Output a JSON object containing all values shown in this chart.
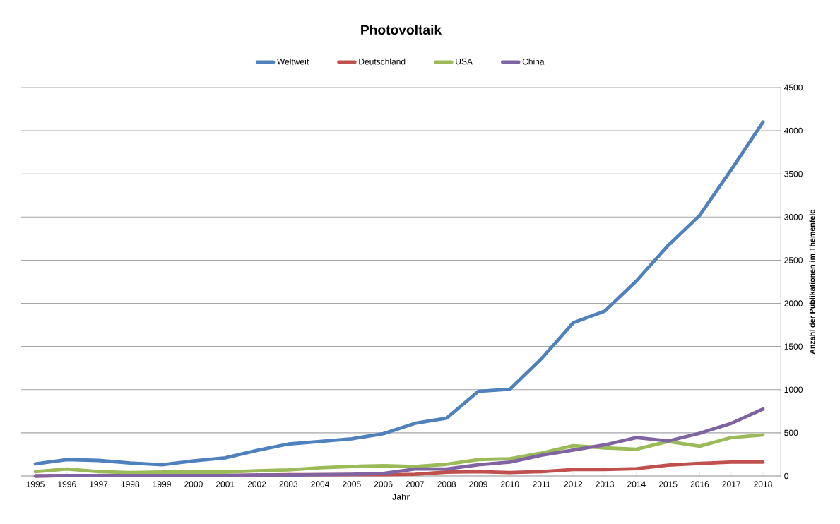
{
  "chart_data": {
    "type": "line",
    "title": "Photovoltaik",
    "xlabel": "Jahr",
    "ylabel": "Anzahl der Publikationen im Themenfeld",
    "categories": [
      "1995",
      "1996",
      "1997",
      "1998",
      "1999",
      "2000",
      "2001",
      "2002",
      "2003",
      "2004",
      "2005",
      "2006",
      "2007",
      "2008",
      "2009",
      "2010",
      "2011",
      "2012",
      "2013",
      "2014",
      "2015",
      "2016",
      "2017",
      "2018"
    ],
    "series": [
      {
        "name": "Weltweit",
        "color": "#4f81bd",
        "values": [
          140,
          190,
          180,
          150,
          130,
          175,
          210,
          295,
          370,
          400,
          430,
          490,
          610,
          670,
          980,
          1005,
          1360,
          1775,
          1910,
          2260,
          2670,
          3020,
          3550,
          4100
        ]
      },
      {
        "name": "Deutschland",
        "color": "#c0504d",
        "values": [
          0,
          5,
          5,
          5,
          5,
          5,
          5,
          10,
          15,
          15,
          15,
          15,
          20,
          45,
          50,
          40,
          50,
          75,
          75,
          85,
          125,
          145,
          160,
          160
        ]
      },
      {
        "name": "USA",
        "color": "#9bbb59",
        "values": [
          50,
          80,
          50,
          40,
          45,
          45,
          45,
          60,
          70,
          95,
          110,
          120,
          110,
          135,
          190,
          200,
          265,
          350,
          325,
          310,
          400,
          345,
          445,
          475
        ]
      },
      {
        "name": "China",
        "color": "#8064a2",
        "values": [
          0,
          5,
          5,
          5,
          5,
          5,
          5,
          10,
          10,
          15,
          20,
          30,
          80,
          80,
          130,
          160,
          240,
          300,
          360,
          445,
          405,
          495,
          610,
          775
        ]
      }
    ],
    "ylim": [
      0,
      4500
    ],
    "yticks": [
      0,
      500,
      1000,
      1500,
      2000,
      2500,
      3000,
      3500,
      4000,
      4500
    ],
    "grid": "y",
    "legend": "top",
    "marker": "none",
    "line_style": "solid"
  }
}
